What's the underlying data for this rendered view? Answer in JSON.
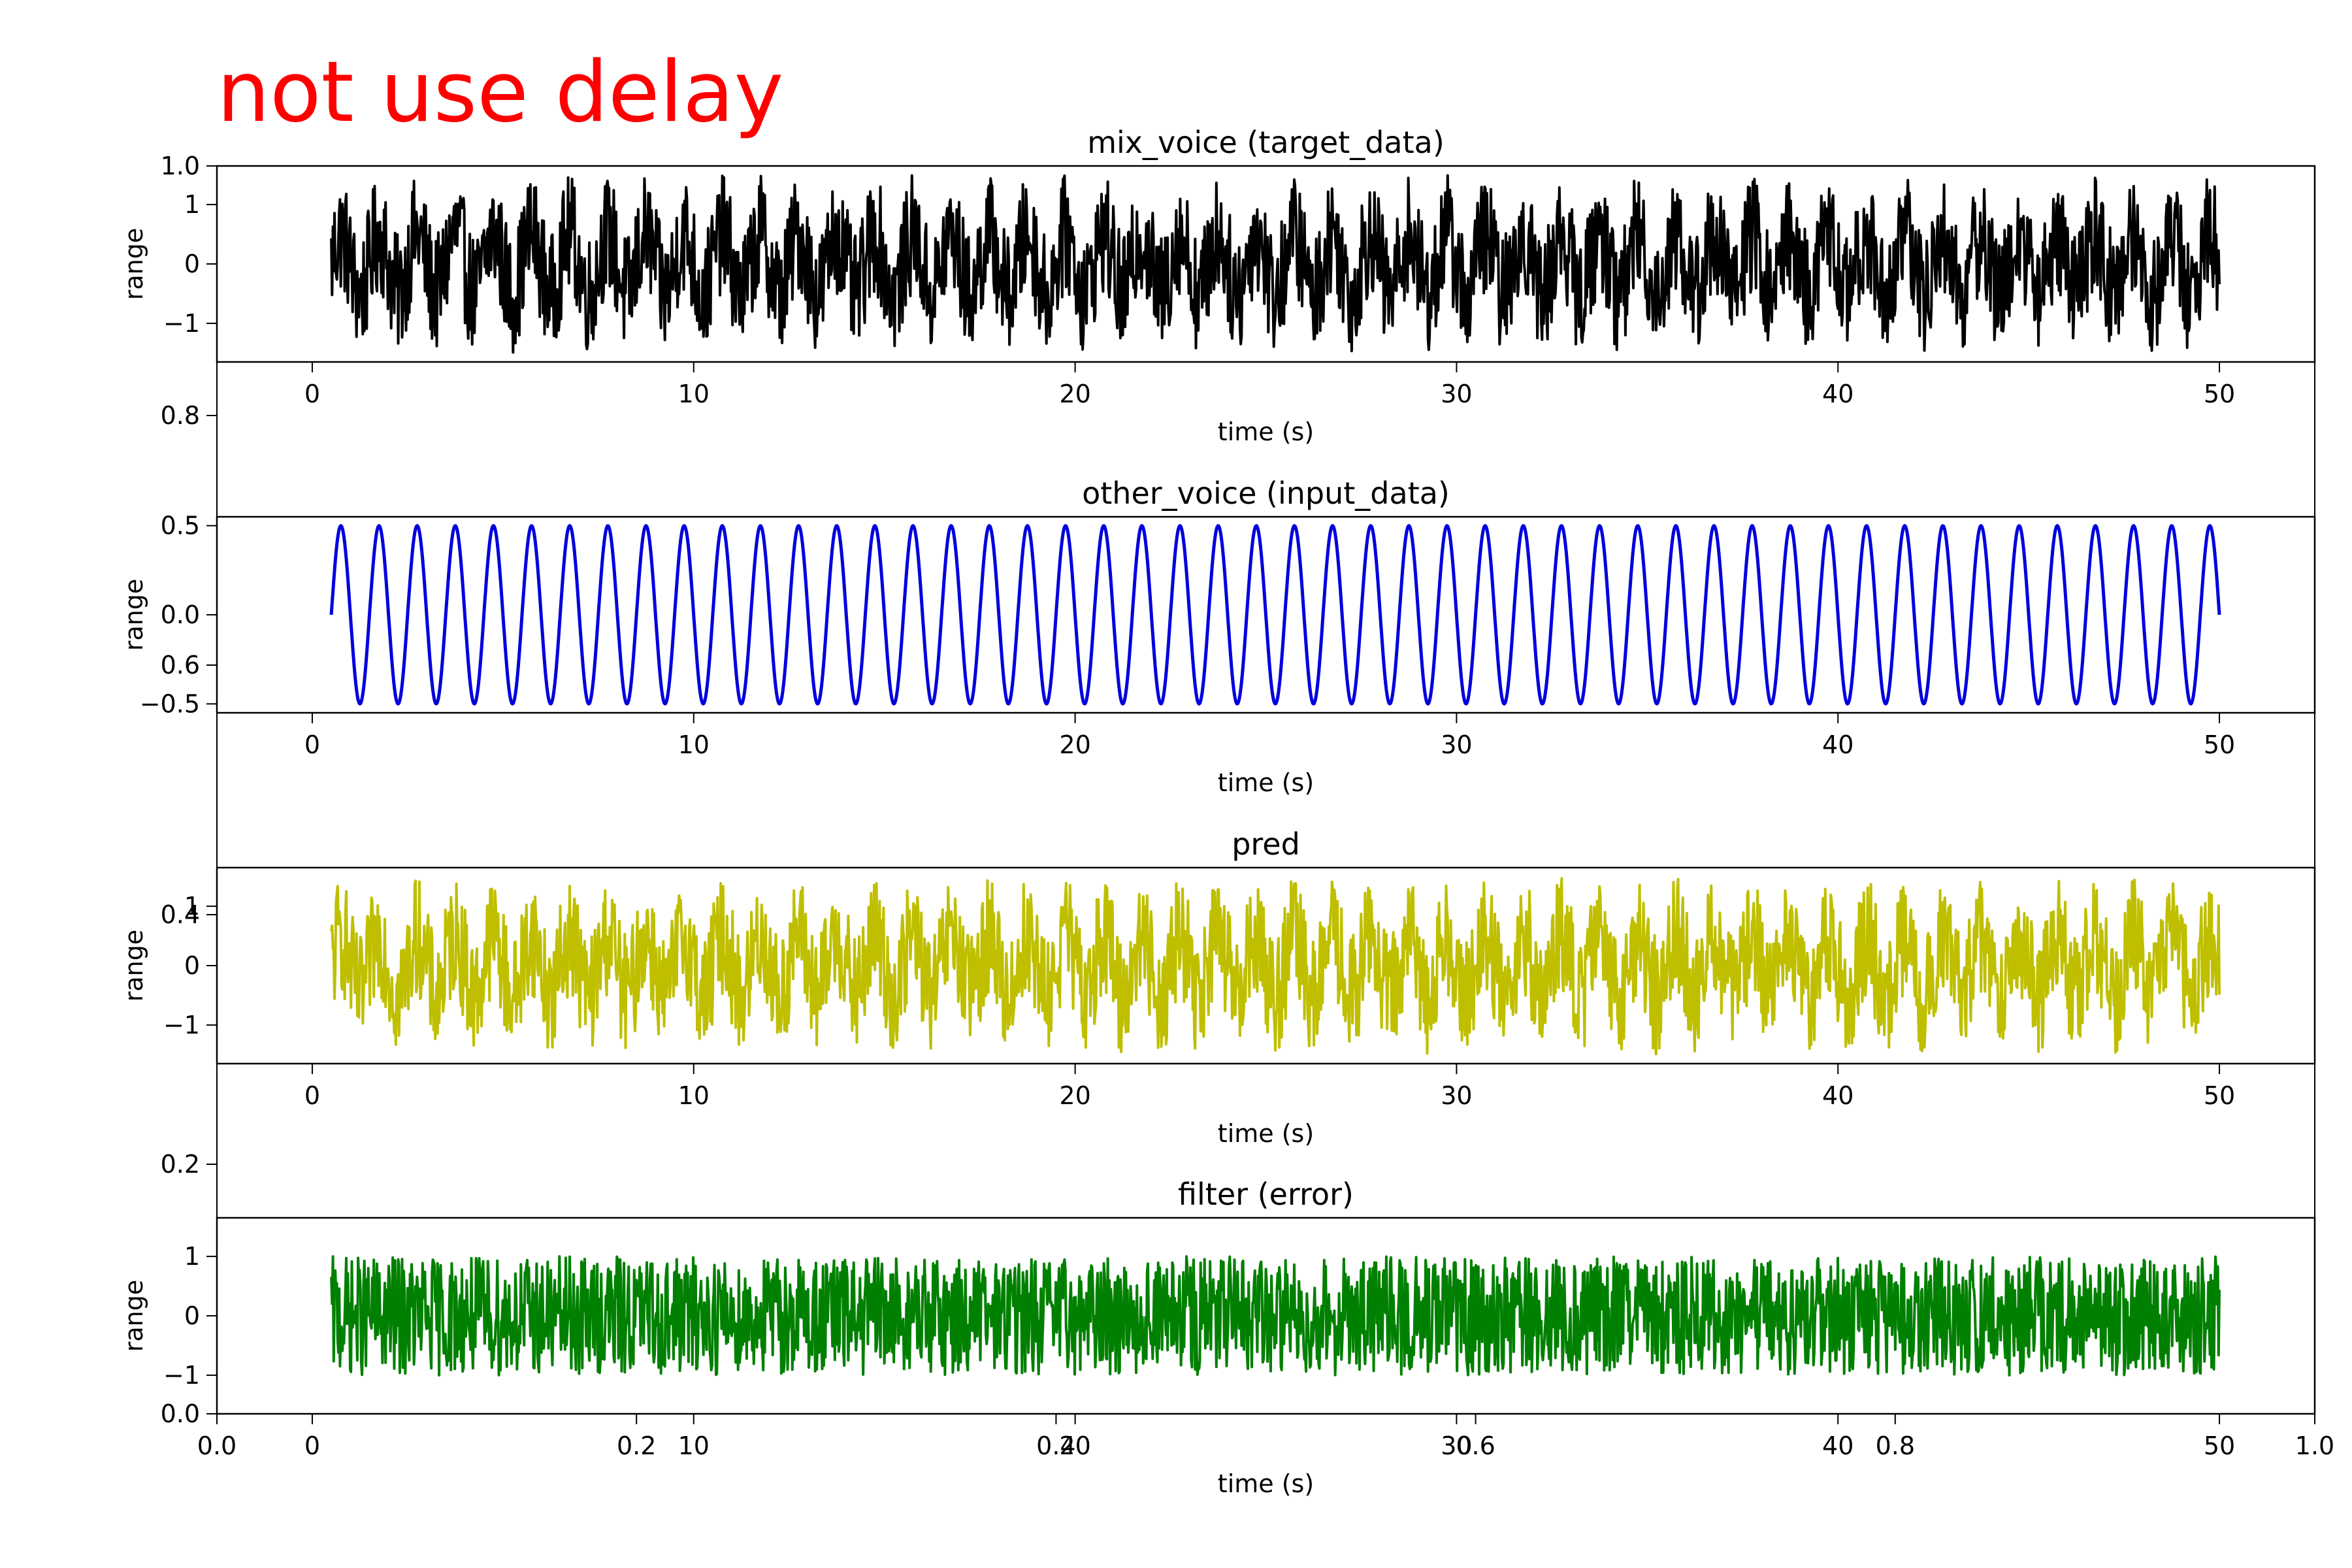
{
  "figure": {
    "suptitle": "not use delay",
    "suptitle_color": "#ff0000",
    "background_axes": {
      "xticks": [
        "0.0",
        "0.2",
        "0.4",
        "0.6",
        "0.8",
        "1.0"
      ],
      "yticks": [
        "0.0",
        "0.2",
        "0.4",
        "0.6",
        "0.8",
        "1.0"
      ]
    }
  },
  "chart_data": [
    {
      "type": "line",
      "title": "mix_voice (target_data)",
      "xlabel": "time (s)",
      "ylabel": "range",
      "color": "#000000",
      "xlim": [
        -2.5,
        52.5
      ],
      "ylim": [
        -1.65,
        1.65
      ],
      "xticks": [
        0,
        10,
        20,
        30,
        40,
        50
      ],
      "yticks": [
        -1,
        0,
        1
      ],
      "ytick_labels": [
        "−1",
        "0",
        "1"
      ],
      "xtick_labels": [
        "0",
        "10",
        "20",
        "30",
        "40",
        "50"
      ],
      "signal": {
        "t_start": 0.5,
        "t_end": 50,
        "tone_hz": 1,
        "tone_amplitude": 0.5,
        "noise_amplitude": 1.0,
        "range": [
          -1.5,
          1.5
        ]
      }
    },
    {
      "type": "line",
      "title": "other_voice (input_data)",
      "xlabel": "time (s)",
      "ylabel": "range",
      "color": "#0000dd",
      "xlim": [
        -2.5,
        52.5
      ],
      "ylim": [
        -0.55,
        0.55
      ],
      "xticks": [
        0,
        10,
        20,
        30,
        40,
        50
      ],
      "yticks": [
        -0.5,
        0,
        0.5
      ],
      "ytick_labels": [
        "−0.5",
        "0.0",
        "0.5"
      ],
      "xtick_labels": [
        "0",
        "10",
        "20",
        "30",
        "40",
        "50"
      ],
      "signal": {
        "t_start": 0.5,
        "t_end": 50,
        "tone_hz": 1,
        "tone_amplitude": 0.5,
        "noise_amplitude": 0,
        "range": [
          -0.5,
          0.5
        ]
      }
    },
    {
      "type": "line",
      "title": "pred",
      "xlabel": "time (s)",
      "ylabel": "range",
      "color": "#bfbf00",
      "xlim": [
        -2.5,
        52.5
      ],
      "ylim": [
        -1.65,
        1.65
      ],
      "xticks": [
        0,
        10,
        20,
        30,
        40,
        50
      ],
      "yticks": [
        -1,
        0,
        1
      ],
      "ytick_labels": [
        "−1",
        "0",
        "1"
      ],
      "xtick_labels": [
        "0",
        "10",
        "20",
        "30",
        "40",
        "50"
      ],
      "signal": {
        "t_start": 0.5,
        "t_end": 50,
        "tone_hz": 1,
        "tone_amplitude": 0.5,
        "noise_amplitude": 1.0,
        "range": [
          -1.5,
          1.5
        ]
      }
    },
    {
      "type": "line",
      "title": "filter (error)",
      "xlabel": "time (s)",
      "ylabel": "range",
      "color": "#008000",
      "xlim": [
        -2.5,
        52.5
      ],
      "ylim": [
        -1.65,
        1.65
      ],
      "xticks": [
        0,
        10,
        20,
        30,
        40,
        50
      ],
      "yticks": [
        -1,
        0,
        1
      ],
      "ytick_labels": [
        "−1",
        "0",
        "1"
      ],
      "xtick_labels": [
        "0",
        "10",
        "20",
        "30",
        "40",
        "50"
      ],
      "signal": {
        "t_start": 0.5,
        "t_end": 50,
        "tone_hz": 0,
        "tone_amplitude": 0,
        "noise_amplitude": 1.0,
        "range": [
          -1.5,
          1.5
        ]
      }
    }
  ]
}
